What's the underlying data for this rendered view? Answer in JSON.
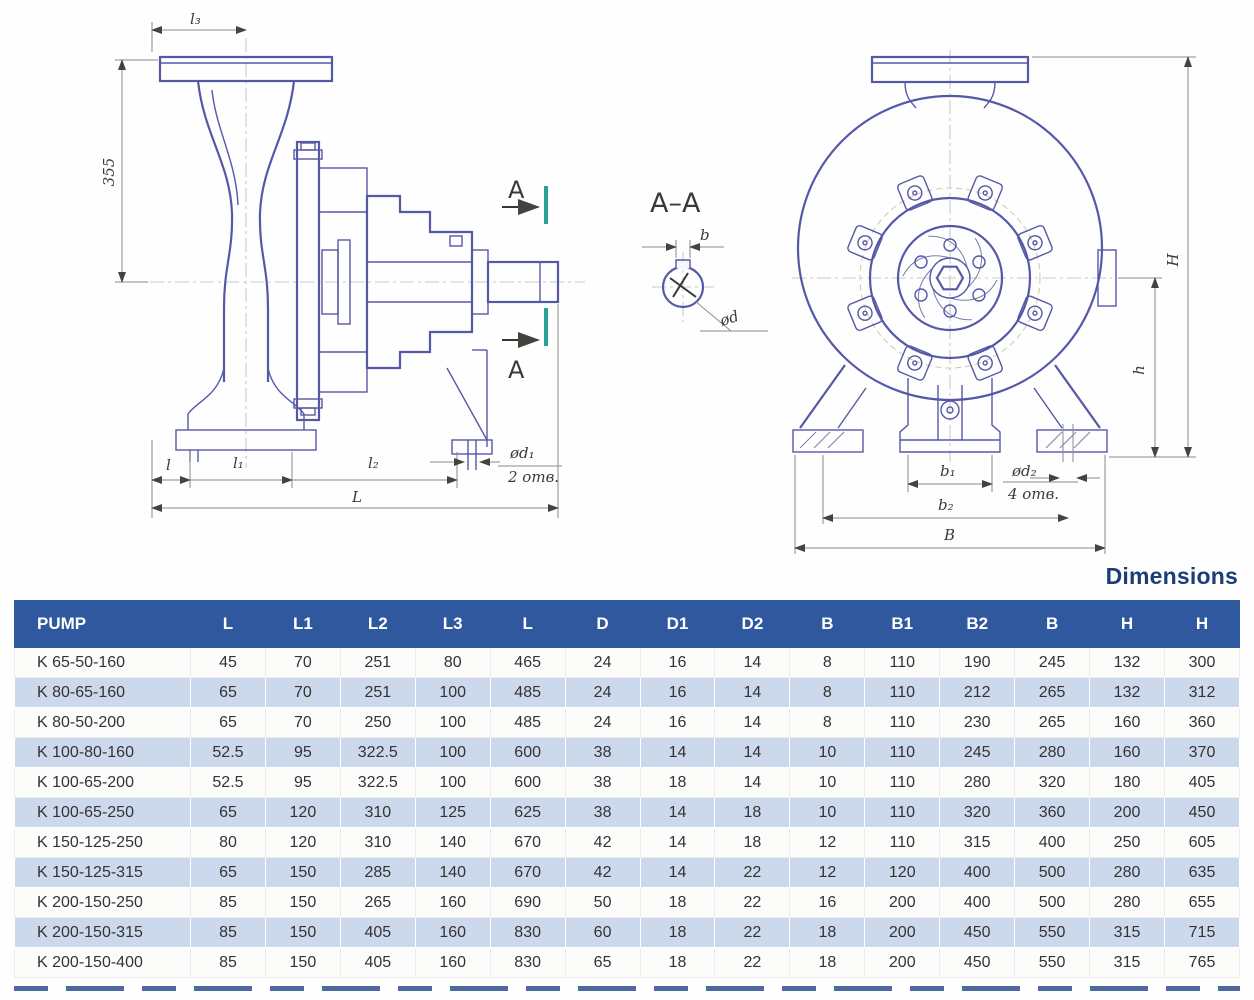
{
  "drawing": {
    "side_view": {
      "l3": "l₃",
      "height_355": "355",
      "l": "l",
      "l1": "l₁",
      "l2": "l₂",
      "L": "L",
      "d1_label": "ød₁",
      "d1_holes": "2 отв.",
      "section_mark_top": "A",
      "section_mark_bottom": "A"
    },
    "section_view": {
      "title": "A–A",
      "b": "b",
      "d": "ød"
    },
    "front_view": {
      "H": "H",
      "h": "h",
      "b1": "b₁",
      "b2": "b₂",
      "B": "B",
      "d2_label": "ød₂",
      "d2_holes": "4 отв."
    }
  },
  "table": {
    "title": "Dimensions",
    "columns": [
      "PUMP",
      "L",
      "L1",
      "L2",
      "L3",
      "L",
      "D",
      "D1",
      "D2",
      "B",
      "B1",
      "B2",
      "B",
      "H",
      "H"
    ],
    "rows": [
      {
        "pump": "K 65-50-160",
        "values": [
          "45",
          "70",
          "251",
          "80",
          "465",
          "24",
          "16",
          "14",
          "8",
          "110",
          "190",
          "245",
          "132",
          "300"
        ]
      },
      {
        "pump": "K 80-65-160",
        "values": [
          "65",
          "70",
          "251",
          "100",
          "485",
          "24",
          "16",
          "14",
          "8",
          "110",
          "212",
          "265",
          "132",
          "312"
        ]
      },
      {
        "pump": "K 80-50-200",
        "values": [
          "65",
          "70",
          "250",
          "100",
          "485",
          "24",
          "16",
          "14",
          "8",
          "110",
          "230",
          "265",
          "160",
          "360"
        ]
      },
      {
        "pump": "K 100-80-160",
        "values": [
          "52.5",
          "95",
          "322.5",
          "100",
          "600",
          "38",
          "14",
          "14",
          "10",
          "110",
          "245",
          "280",
          "160",
          "370"
        ]
      },
      {
        "pump": "K 100-65-200",
        "values": [
          "52.5",
          "95",
          "322.5",
          "100",
          "600",
          "38",
          "18",
          "14",
          "10",
          "110",
          "280",
          "320",
          "180",
          "405"
        ]
      },
      {
        "pump": "K 100-65-250",
        "values": [
          "65",
          "120",
          "310",
          "125",
          "625",
          "38",
          "14",
          "18",
          "10",
          "110",
          "320",
          "360",
          "200",
          "450"
        ]
      },
      {
        "pump": "K 150-125-250",
        "values": [
          "80",
          "120",
          "310",
          "140",
          "670",
          "42",
          "14",
          "18",
          "12",
          "110",
          "315",
          "400",
          "250",
          "605"
        ]
      },
      {
        "pump": "K 150-125-315",
        "values": [
          "65",
          "150",
          "285",
          "140",
          "670",
          "42",
          "14",
          "22",
          "12",
          "120",
          "400",
          "500",
          "280",
          "635"
        ]
      },
      {
        "pump": "K 200-150-250",
        "values": [
          "85",
          "150",
          "265",
          "160",
          "690",
          "50",
          "18",
          "22",
          "16",
          "200",
          "400",
          "500",
          "280",
          "655"
        ]
      },
      {
        "pump": "K 200-150-315",
        "values": [
          "85",
          "150",
          "405",
          "160",
          "830",
          "60",
          "18",
          "22",
          "18",
          "200",
          "450",
          "550",
          "315",
          "715"
        ]
      },
      {
        "pump": "K 200-150-400",
        "values": [
          "85",
          "150",
          "405",
          "160",
          "830",
          "65",
          "18",
          "22",
          "18",
          "200",
          "450",
          "550",
          "315",
          "765"
        ]
      }
    ]
  },
  "colors": {
    "header_bg": "#30589E",
    "header_text": "#FFFFFF",
    "row_alt_bg": "#CCD8EC",
    "row_bg": "#FCFCFA",
    "title_color": "#1C3D77",
    "drawing_line": "#5558A7",
    "dimension_line": "#8B8B85",
    "section_tick": "#2AA198"
  }
}
